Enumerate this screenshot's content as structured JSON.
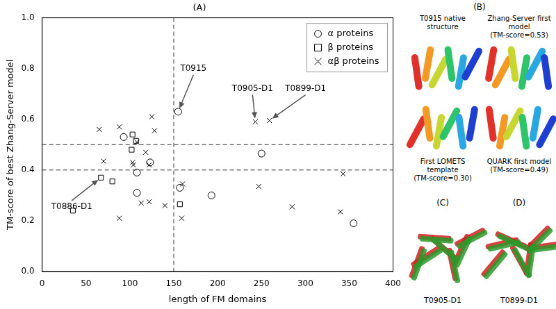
{
  "chart_data": {
    "type": "scatter",
    "title": "(A)",
    "x_label": "length of FM domains",
    "y_label": "TM-score of best Zhang-Server model",
    "xlim": [
      0,
      400
    ],
    "ylim": [
      0,
      1
    ],
    "xticks": [
      0,
      50,
      100,
      150,
      200,
      250,
      300,
      350,
      400
    ],
    "yticks": [
      {
        "value": 0,
        "label": "0.0"
      },
      {
        "value": 0.2,
        "label": "0.2"
      },
      {
        "value": 0.4,
        "label": "0.4"
      },
      {
        "value": 0.6,
        "label": "0.6"
      },
      {
        "value": 0.8,
        "label": "0.8"
      },
      {
        "value": 1,
        "label": "1.0"
      }
    ],
    "grid": false,
    "legend": "upper right",
    "series": [
      {
        "name": "α proteins",
        "marker": "circle",
        "color": "#000000",
        "x": [
          93,
          108,
          108,
          123,
          157,
          155,
          193,
          250,
          355
        ],
        "values": [
          0.53,
          0.39,
          0.31,
          0.43,
          0.33,
          0.63,
          0.3,
          0.465,
          0.19
        ]
      },
      {
        "name": "β proteins",
        "marker": "square",
        "color": "#000000",
        "x": [
          35,
          67,
          80,
          102,
          103,
          107,
          157
        ],
        "values": [
          0.24,
          0.37,
          0.355,
          0.48,
          0.54,
          0.515,
          0.265
        ]
      },
      {
        "name": "αβ proteins",
        "marker": "cross",
        "color": "#000000",
        "x": [
          65,
          70,
          88,
          88,
          103,
          104,
          108,
          113,
          118,
          122,
          122,
          125,
          128,
          140,
          160,
          159,
          243,
          259,
          247,
          285,
          343,
          340
        ],
        "values": [
          0.56,
          0.435,
          0.57,
          0.21,
          0.43,
          0.42,
          0.51,
          0.27,
          0.47,
          0.275,
          0.42,
          0.61,
          0.555,
          0.26,
          0.345,
          0.21,
          0.59,
          0.595,
          0.335,
          0.255,
          0.385,
          0.235
        ]
      }
    ],
    "reference_lines": [
      {
        "axis": "x",
        "value": 150,
        "line_style": "dashed"
      },
      {
        "axis": "y",
        "value": 0.5,
        "line_style": "dashed"
      },
      {
        "axis": "y",
        "value": 0.4,
        "line_style": "dashed"
      }
    ],
    "annotations": [
      {
        "text": "T0915",
        "x": 155,
        "y": 0.63
      },
      {
        "text": "T0905-D1",
        "x": 243,
        "y": 0.59
      },
      {
        "text": "T0899-D1",
        "x": 259,
        "y": 0.595
      },
      {
        "text": "T0886-D1",
        "x": 67,
        "y": 0.37
      }
    ]
  },
  "panel_B": {
    "label": "(B)",
    "captions": [
      "T0915 native structure",
      "Zhang-Server first model (TM-score=0.53)",
      "First LOMETS template (TM-score=0.30)",
      "QUARK first model (TM-score=0.49)"
    ]
  },
  "panel_C": {
    "label": "(C)",
    "caption": "T0905-D1"
  },
  "panel_D": {
    "label": "(D)",
    "caption": "T0899-D1"
  }
}
